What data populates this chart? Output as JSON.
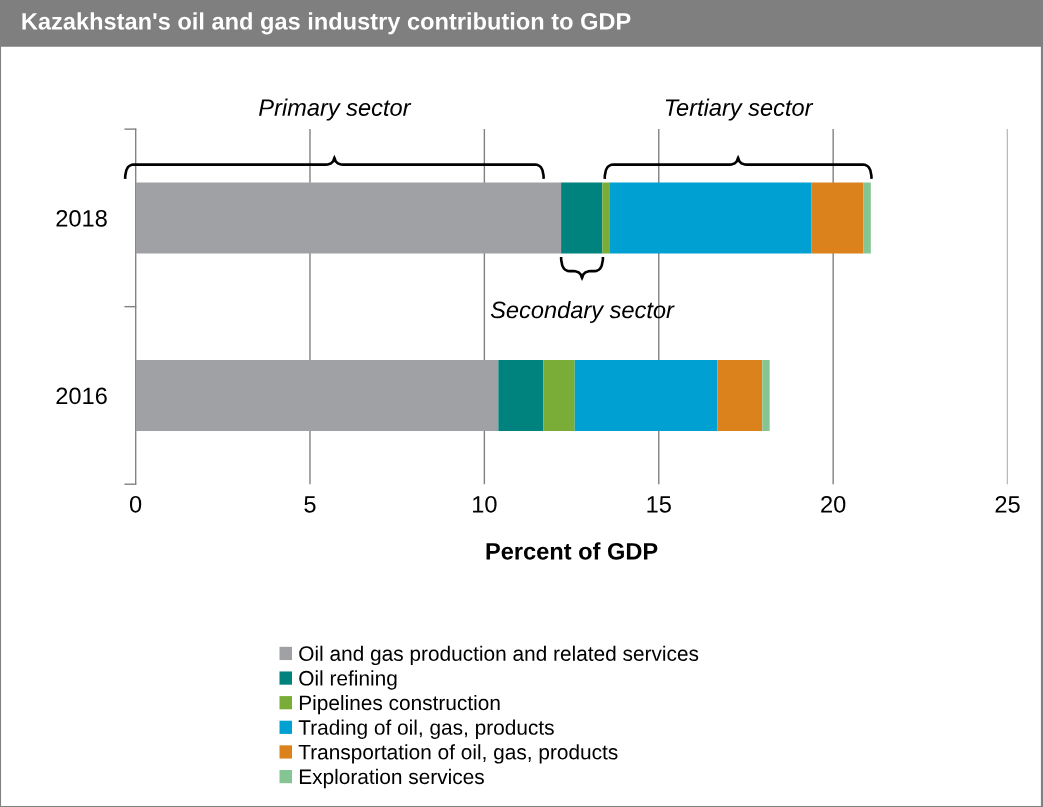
{
  "chart_data": {
    "type": "bar",
    "orientation": "horizontal",
    "stacked": true,
    "title": "Kazakhstan's oil and gas industry contribution to GDP",
    "xlabel": "Percent of GDP",
    "categories": [
      "2018",
      "2016"
    ],
    "series": [
      {
        "name": "Oil and gas production and related services",
        "color": "#a0a1a5",
        "values": [
          12.2,
          10.4
        ]
      },
      {
        "name": "Oil refining",
        "color": "#00827f",
        "values": [
          1.18,
          1.29
        ]
      },
      {
        "name": "Pipelines construction",
        "color": "#7aad37",
        "values": [
          0.22,
          0.9
        ]
      },
      {
        "name": "Trading of oil, gas, products",
        "color": "#00a0d3",
        "values": [
          5.77,
          4.09
        ]
      },
      {
        "name": "Transportation of oil, gas, products",
        "color": "#dc821c",
        "values": [
          1.5,
          1.29
        ]
      },
      {
        "name": "Exploration services",
        "color": "#85c594",
        "values": [
          0.21,
          0.21
        ]
      }
    ],
    "xlim": [
      0,
      25
    ],
    "xticks": [
      0,
      5,
      10,
      15,
      20,
      25
    ],
    "grid": "x",
    "legend": "bottom",
    "annotations": [
      "Primary sector",
      "Secondary sector",
      "Tertiary sector"
    ]
  }
}
